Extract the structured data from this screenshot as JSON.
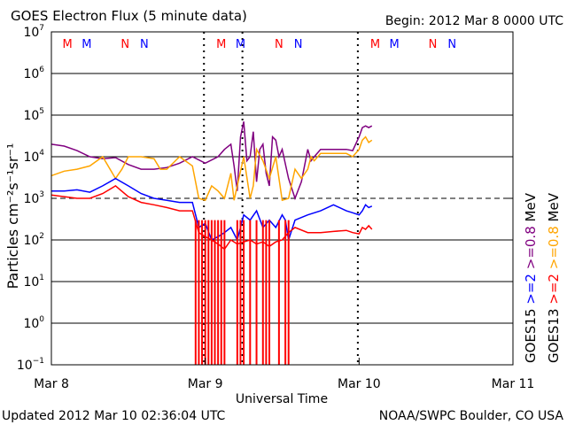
{
  "chart_data": {
    "type": "line",
    "title": "GOES Electron Flux (5 minute data)",
    "begin_label": "Begin: 2012 Mar 8 0000 UTC",
    "xlabel": "Universal Time",
    "ylabel": "Particles cm⁻²s⁻¹sr⁻¹",
    "yscale": "log",
    "ylim": [
      0.1,
      10000000
    ],
    "xlim_hours": [
      0,
      72
    ],
    "x_ticks": [
      {
        "hour": 0,
        "label": "Mar 8"
      },
      {
        "hour": 24,
        "label": "Mar 9"
      },
      {
        "hour": 48,
        "label": "Mar 10"
      },
      {
        "hour": 72,
        "label": "Mar 11"
      }
    ],
    "y_ticks": [
      {
        "value": 0.1,
        "base": "10",
        "exp": "−1"
      },
      {
        "value": 1,
        "base": "10",
        "exp": "0"
      },
      {
        "value": 10,
        "base": "10",
        "exp": "1"
      },
      {
        "value": 100,
        "base": "10",
        "exp": "2"
      },
      {
        "value": 1000,
        "base": "10",
        "exp": "3"
      },
      {
        "value": 10000,
        "base": "10",
        "exp": "4"
      },
      {
        "value": 100000,
        "base": "10",
        "exp": "5"
      },
      {
        "value": 1000000,
        "base": "10",
        "exp": "6"
      },
      {
        "value": 10000000,
        "base": "10",
        "exp": "7"
      }
    ],
    "dashed_threshold": 1000,
    "top_markers": [
      {
        "hour": 2.5,
        "label": "M",
        "color": "red"
      },
      {
        "hour": 5.5,
        "label": "M",
        "color": "blue"
      },
      {
        "hour": 11.5,
        "label": "N",
        "color": "red"
      },
      {
        "hour": 14.5,
        "label": "N",
        "color": "blue"
      },
      {
        "hour": 26.5,
        "label": "M",
        "color": "red"
      },
      {
        "hour": 29.5,
        "label": "M",
        "color": "blue"
      },
      {
        "hour": 35.5,
        "label": "N",
        "color": "red"
      },
      {
        "hour": 38.5,
        "label": "N",
        "color": "blue"
      },
      {
        "hour": 50.5,
        "label": "M",
        "color": "red"
      },
      {
        "hour": 53.5,
        "label": "M",
        "color": "blue"
      },
      {
        "hour": 59.5,
        "label": "N",
        "color": "red"
      },
      {
        "hour": 62.5,
        "label": "N",
        "color": "blue"
      }
    ],
    "dotted_vertical_hours": [
      23.8,
      29.8,
      47.8
    ],
    "legend": [
      {
        "text": "GOES15",
        "color": "#000000"
      },
      {
        "text": ">=2",
        "color": "#0000ff"
      },
      {
        "text": ">=0.8",
        "color": "#800080"
      },
      {
        "text": "MeV",
        "color": "#000000"
      },
      {
        "text": "GOES13",
        "color": "#000000"
      },
      {
        "text": ">=2",
        "color": "#ff0000"
      },
      {
        "text": ">=0.8",
        "color": "#ffa500"
      },
      {
        "text": "MeV",
        "color": "#000000"
      }
    ],
    "series": [
      {
        "name": "GOES15 >=0.8 MeV",
        "color": "#800080",
        "hours": [
          0,
          2,
          4,
          6,
          8,
          10,
          12,
          14,
          16,
          18,
          20,
          22,
          24,
          26,
          27,
          28,
          28.5,
          29,
          29.5,
          30,
          30.5,
          31,
          31.5,
          32,
          32.5,
          33,
          33.5,
          34,
          34.5,
          35,
          35.5,
          36,
          37,
          38,
          39,
          40,
          40.5,
          41,
          42,
          44,
          46,
          47,
          48,
          48.5,
          49,
          49.5,
          50
        ],
        "values": [
          20000,
          18000,
          14000,
          10000,
          9000,
          9500,
          6500,
          5000,
          5000,
          5500,
          7000,
          10000,
          7000,
          10000,
          15000,
          20000,
          6000,
          1500,
          30000,
          70000,
          8000,
          10000,
          40000,
          2500,
          15000,
          20000,
          4000,
          2000,
          30000,
          25000,
          10000,
          15000,
          3000,
          1000,
          2500,
          15000,
          8000,
          10000,
          15000,
          15000,
          15000,
          14000,
          30000,
          50000,
          55000,
          50000,
          55000
        ]
      },
      {
        "name": "GOES13 >=0.8 MeV",
        "color": "#ffa500",
        "hours": [
          0,
          2,
          4,
          6,
          8,
          10,
          11,
          12,
          14,
          16,
          17,
          18,
          20,
          22,
          23,
          24,
          25,
          26,
          27,
          28,
          28.5,
          29,
          30,
          31,
          31.5,
          32,
          33,
          34,
          35,
          36,
          37,
          38,
          39,
          40,
          40.5,
          41,
          42,
          44,
          46,
          47,
          48,
          48.5,
          49,
          49.5,
          50
        ],
        "values": [
          3500,
          4500,
          5000,
          6000,
          10000,
          3000,
          5000,
          10000,
          10000,
          9000,
          5000,
          5000,
          10000,
          6000,
          1000,
          900,
          2000,
          1500,
          1000,
          4000,
          900,
          2000,
          10000,
          1000,
          2000,
          15000,
          8000,
          3000,
          10000,
          900,
          1000,
          5000,
          3000,
          5000,
          10000,
          8000,
          12000,
          12000,
          12000,
          10000,
          15000,
          25000,
          30000,
          22000,
          25000
        ]
      },
      {
        "name": "GOES15 >=2 MeV",
        "color": "#0000ff",
        "hours": [
          0,
          2,
          4,
          6,
          8,
          10,
          12,
          14,
          16,
          18,
          20,
          22,
          23,
          24,
          25,
          26,
          27,
          28,
          29,
          30,
          31,
          32,
          33,
          34,
          35,
          36,
          36.5,
          37,
          38,
          40,
          42,
          44,
          46,
          47,
          48,
          48.5,
          49,
          49.5,
          50
        ],
        "values": [
          1500,
          1500,
          1600,
          1400,
          2000,
          3000,
          2000,
          1300,
          1000,
          900,
          800,
          800,
          200,
          250,
          100,
          120,
          150,
          200,
          100,
          400,
          300,
          500,
          200,
          300,
          200,
          400,
          300,
          100,
          300,
          400,
          500,
          700,
          500,
          450,
          400,
          500,
          700,
          600,
          650
        ]
      },
      {
        "name": "GOES13 >=2 MeV",
        "color": "#ff0000",
        "hours": [
          0,
          2,
          4,
          6,
          8,
          10,
          12,
          14,
          16,
          18,
          20,
          22,
          23,
          24,
          25,
          26,
          27,
          28,
          29,
          30,
          31,
          32,
          33,
          34,
          35,
          36,
          37,
          38,
          40,
          42,
          44,
          46,
          47,
          48,
          48.5,
          49,
          49.5,
          50
        ],
        "values": [
          1200,
          1100,
          1000,
          1000,
          1300,
          2000,
          1100,
          800,
          700,
          600,
          500,
          500,
          150,
          120,
          100,
          80,
          60,
          100,
          80,
          90,
          100,
          80,
          90,
          70,
          90,
          100,
          150,
          200,
          150,
          150,
          160,
          170,
          150,
          140,
          200,
          180,
          220,
          180
        ]
      },
      {
        "name": "GOES13 >=2 MeV dropouts",
        "color": "#ff0000",
        "render": "spikes",
        "spike_hours": [
          22.5,
          23,
          23.5,
          24,
          24.5,
          25,
          25.5,
          26,
          26.5,
          27,
          29,
          29.5,
          30,
          31,
          32,
          33,
          33.5,
          34,
          35.5,
          36.5,
          37
        ],
        "spike_floor": 0.1
      }
    ]
  },
  "footer": {
    "updated": "Updated 2012 Mar 10 02:36:04 UTC",
    "credit": "NOAA/SWPC Boulder, CO USA"
  }
}
